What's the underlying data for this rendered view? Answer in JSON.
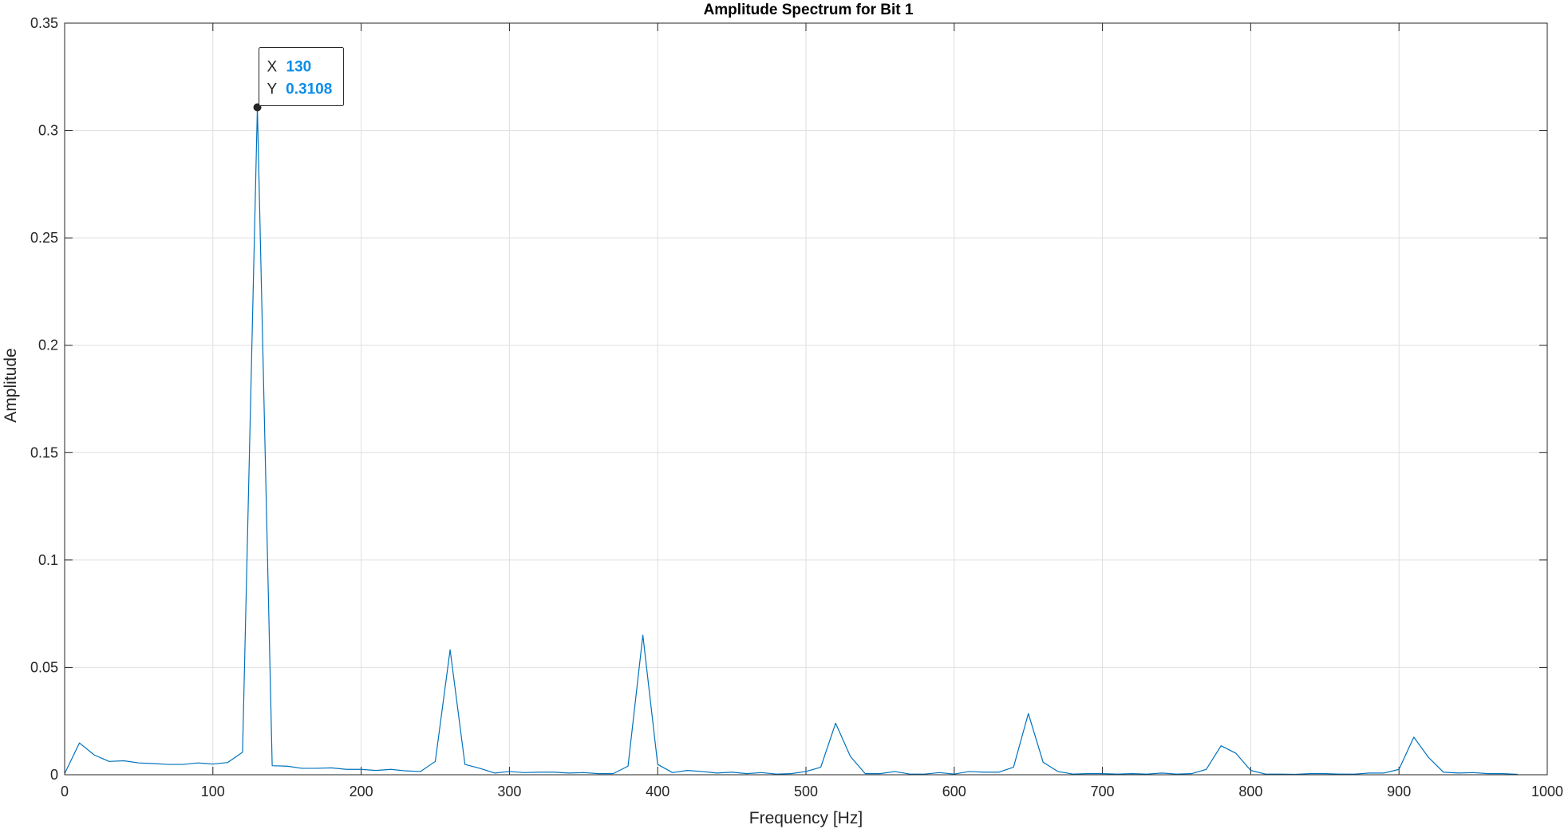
{
  "chart_data": {
    "type": "line",
    "title": "Amplitude Spectrum for Bit 1",
    "xlabel": "Frequency [Hz]",
    "ylabel": "Amplitude",
    "xlim": [
      0,
      1000
    ],
    "ylim": [
      0,
      0.35
    ],
    "xticks": [
      0,
      100,
      200,
      300,
      400,
      500,
      600,
      700,
      800,
      900,
      1000
    ],
    "yticks": [
      0,
      0.05,
      0.1,
      0.15,
      0.2,
      0.25,
      0.3,
      0.35
    ],
    "xtick_labels": [
      "0",
      "100",
      "200",
      "300",
      "400",
      "500",
      "600",
      "700",
      "800",
      "900",
      "1000"
    ],
    "ytick_labels": [
      "0",
      "0.05",
      "0.1",
      "0.15",
      "0.2",
      "0.25",
      "0.3",
      "0.35"
    ],
    "grid": true,
    "series_color": "#0072BD",
    "series": [
      {
        "x": [
          0,
          10,
          20,
          30,
          40,
          50,
          60,
          70,
          80,
          90,
          100,
          110,
          120,
          130,
          140,
          150,
          160,
          170,
          180,
          190,
          200,
          210,
          220,
          230,
          240,
          250,
          260,
          270,
          280,
          290,
          300,
          310,
          320,
          330,
          340,
          350,
          360,
          370,
          380,
          390,
          400,
          410,
          420,
          430,
          440,
          450,
          460,
          470,
          480,
          490,
          500,
          510,
          520,
          530,
          540,
          550,
          560,
          570,
          580,
          590,
          600,
          610,
          620,
          630,
          640,
          650,
          660,
          670,
          680,
          690,
          700,
          710,
          720,
          730,
          740,
          750,
          760,
          770,
          780,
          790,
          800,
          810,
          820,
          830,
          840,
          850,
          860,
          870,
          880,
          890,
          900,
          910,
          920,
          930,
          940,
          950,
          960,
          970,
          980
        ],
        "values": [
          0.0005,
          0.0148,
          0.0092,
          0.0062,
          0.0065,
          0.0055,
          0.0052,
          0.0048,
          0.0048,
          0.0055,
          0.005,
          0.0057,
          0.0105,
          0.3108,
          0.0042,
          0.004,
          0.003,
          0.003,
          0.0032,
          0.0025,
          0.0025,
          0.002,
          0.0025,
          0.0018,
          0.0015,
          0.0062,
          0.0582,
          0.0048,
          0.003,
          0.0008,
          0.0015,
          0.001,
          0.0012,
          0.0012,
          0.0008,
          0.001,
          0.0005,
          0.0005,
          0.004,
          0.065,
          0.0048,
          0.001,
          0.002,
          0.0015,
          0.0008,
          0.0012,
          0.0005,
          0.001,
          0.0003,
          0.0005,
          0.0015,
          0.0035,
          0.024,
          0.0085,
          0.0005,
          0.0005,
          0.0015,
          0.0003,
          0.0003,
          0.001,
          0.0003,
          0.0015,
          0.0012,
          0.0012,
          0.0035,
          0.0285,
          0.0058,
          0.0015,
          0.0003,
          0.0005,
          0.0005,
          0.0003,
          0.0005,
          0.0003,
          0.0008,
          0.0003,
          0.0005,
          0.0025,
          0.0135,
          0.01,
          0.002,
          0.0003,
          0.0003,
          0.0002,
          0.0005,
          0.0005,
          0.0003,
          0.0003,
          0.0008,
          0.0008,
          0.0025,
          0.0175,
          0.008,
          0.0012,
          0.0008,
          0.001,
          0.0005,
          0.0005,
          0.0002
        ]
      }
    ],
    "datatip": {
      "x_label": "X",
      "x_value": "130",
      "y_label": "Y",
      "y_value": "0.3108",
      "x": 130,
      "y": 0.3108
    }
  }
}
